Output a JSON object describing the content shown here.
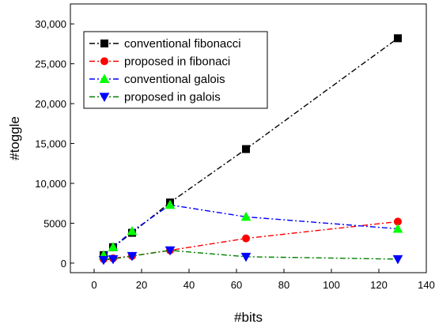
{
  "chart_data": {
    "type": "line",
    "title": "",
    "xlabel": "#bits",
    "ylabel": "#toggle",
    "xlim": [
      -10,
      140
    ],
    "ylim": [
      -1200,
      32500
    ],
    "x_ticks": [
      0,
      20,
      40,
      60,
      80,
      100,
      120,
      140
    ],
    "x_tick_labels": [
      "0",
      "20",
      "40",
      "60",
      "80",
      "100",
      "120",
      "140"
    ],
    "y_ticks": [
      0,
      5000,
      10000,
      15000,
      20000,
      25000,
      30000
    ],
    "y_tick_labels": [
      "0",
      "5000",
      "10,000",
      "15,000",
      "20,000",
      "25,000",
      "30,000"
    ],
    "grid": false,
    "legend_position": "top-left",
    "x": [
      4,
      8,
      16,
      32,
      64,
      128
    ],
    "series": [
      {
        "name": "conventional fibonacci",
        "color": "#000000",
        "marker": "square",
        "values": [
          1000,
          2000,
          3800,
          7600,
          14300,
          28200
        ]
      },
      {
        "name": "proposed in fibonaci",
        "color": "#ff0000",
        "marker": "circle",
        "values": [
          500,
          600,
          900,
          1600,
          3100,
          5200
        ]
      },
      {
        "name": "conventional galois",
        "color": "#0000ff",
        "marker": "triangle-up",
        "values": [
          1000,
          2000,
          4000,
          7300,
          5800,
          4300
        ]
      },
      {
        "name": "proposed in galois",
        "color": "#008000",
        "marker": "triangle-down",
        "values": [
          400,
          500,
          900,
          1600,
          800,
          500
        ]
      }
    ],
    "marker_colors": [
      "#000000",
      "#ff0000",
      "#00ff00",
      "#0000ff"
    ]
  }
}
